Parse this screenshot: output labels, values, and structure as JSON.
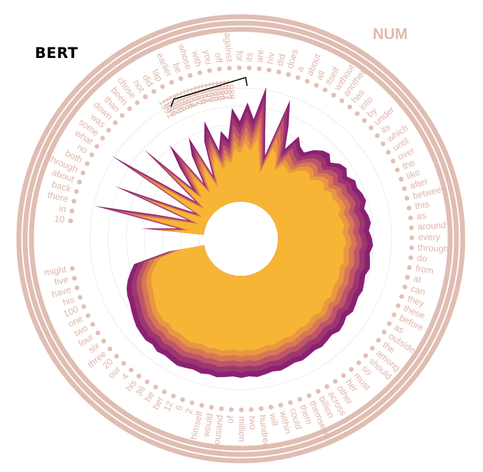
{
  "title": "BERT",
  "corner_label": "NUM",
  "chart_data": {
    "type": "radial-area",
    "theme": {
      "ring": "#e0bdb2",
      "dot": "#e2c0b5",
      "label": "#dfb6ab",
      "inner": "#f6b733",
      "outer": "#8a2173"
    },
    "bracket_label_group": [
      "1991",
      "1990",
      "1992",
      "2000",
      "1996",
      "1993",
      "1995",
      "1994",
      "1983",
      "1997",
      "1989",
      "1986",
      "1981",
      "1999",
      "1980",
      "1998",
      "1985",
      "1984",
      "1987",
      "1988"
    ],
    "words": [
      "10",
      "in",
      "there",
      "back",
      "about",
      "through",
      "both",
      "no",
      "what",
      "some",
      "was",
      "down",
      "than",
      "been",
      "chose",
      "not",
      "did",
      "lap",
      "earlier",
      "be",
      "whose",
      "with",
      "you",
      "off",
      "against",
      "for",
      "its",
      "are",
      "hiv",
      "did",
      "does",
      "a",
      "about",
      "all",
      "itself",
      "without",
      "another",
      "has",
      "into",
      "by",
      "under",
      "its",
      "which",
      "until",
      "over",
      "the",
      "like",
      "after",
      "between",
      "this",
      "as",
      "around",
      "every",
      "through",
      "do",
      "from",
      "at",
      "can",
      "they",
      "these",
      "before",
      "as",
      "outside",
      "the",
      "among",
      "should",
      "so",
      "must",
      "her",
      "other",
      "across",
      "billion",
      "themselves",
      "them",
      "could",
      "within",
      "will",
      "hundred",
      "two",
      "million",
      "of",
      "thousand",
      "would",
      "himself",
      "2",
      "6",
      "12",
      "her",
      "he",
      "36",
      "his",
      "4",
      "our",
      "20",
      "three",
      "six",
      "four",
      "two",
      "one",
      "100",
      "his",
      "have",
      "five",
      "might"
    ],
    "series": [
      {
        "name": "max",
        "values": [
          0.55,
          0.28,
          0.92,
          0.45,
          0.22,
          0.82,
          0.35,
          0.2,
          0.95,
          0.42,
          0.24,
          0.78,
          0.33,
          0.5,
          0.68,
          0.3,
          0.52,
          0.65,
          0.32,
          0.58,
          0.72,
          0.48,
          0.62,
          0.55,
          0.78,
          0.68,
          0.82,
          0.7,
          0.95,
          0.62,
          0.45,
          0.9,
          0.72,
          0.55,
          0.68,
          0.62,
          0.6,
          0.66,
          0.7,
          0.72,
          0.68,
          0.73,
          0.75,
          0.72,
          0.76,
          0.75,
          0.77,
          0.78,
          0.75,
          0.77,
          0.78,
          0.76,
          0.78,
          0.79,
          0.77,
          0.78,
          0.79,
          0.77,
          0.78,
          0.79,
          0.78,
          0.79,
          0.8,
          0.78,
          0.8,
          0.81,
          0.79,
          0.8,
          0.81,
          0.8,
          0.81,
          0.82,
          0.81,
          0.82,
          0.83,
          0.82,
          0.83,
          0.84,
          0.83,
          0.84,
          0.83,
          0.84,
          0.85,
          0.84,
          0.85,
          0.84,
          0.85,
          0.86,
          0.85,
          0.84,
          0.85,
          0.83,
          0.84,
          0.83,
          0.82,
          0.8,
          0.78,
          0.76,
          0.75,
          0.73,
          0.7,
          0.66,
          0.62,
          0.35
        ]
      },
      {
        "name": "q90",
        "values": [
          0.52,
          0.26,
          0.86,
          0.41,
          0.2,
          0.76,
          0.32,
          0.18,
          0.88,
          0.38,
          0.22,
          0.72,
          0.3,
          0.46,
          0.62,
          0.28,
          0.48,
          0.6,
          0.3,
          0.54,
          0.66,
          0.45,
          0.57,
          0.51,
          0.72,
          0.63,
          0.76,
          0.65,
          0.88,
          0.58,
          0.42,
          0.84,
          0.67,
          0.51,
          0.63,
          0.58,
          0.56,
          0.62,
          0.66,
          0.67,
          0.64,
          0.69,
          0.71,
          0.68,
          0.72,
          0.71,
          0.73,
          0.74,
          0.71,
          0.73,
          0.74,
          0.72,
          0.74,
          0.75,
          0.73,
          0.74,
          0.75,
          0.73,
          0.74,
          0.75,
          0.74,
          0.75,
          0.76,
          0.74,
          0.76,
          0.77,
          0.75,
          0.76,
          0.77,
          0.76,
          0.77,
          0.78,
          0.77,
          0.78,
          0.79,
          0.78,
          0.79,
          0.8,
          0.79,
          0.8,
          0.79,
          0.8,
          0.81,
          0.8,
          0.81,
          0.8,
          0.81,
          0.82,
          0.81,
          0.8,
          0.81,
          0.79,
          0.8,
          0.79,
          0.78,
          0.76,
          0.74,
          0.72,
          0.71,
          0.69,
          0.66,
          0.62,
          0.58,
          0.33
        ]
      },
      {
        "name": "q75",
        "values": [
          0.48,
          0.24,
          0.78,
          0.37,
          0.18,
          0.69,
          0.29,
          0.16,
          0.8,
          0.34,
          0.2,
          0.65,
          0.27,
          0.42,
          0.56,
          0.26,
          0.44,
          0.55,
          0.28,
          0.5,
          0.6,
          0.42,
          0.52,
          0.47,
          0.66,
          0.58,
          0.7,
          0.6,
          0.8,
          0.54,
          0.39,
          0.76,
          0.62,
          0.47,
          0.58,
          0.54,
          0.52,
          0.58,
          0.62,
          0.63,
          0.6,
          0.65,
          0.67,
          0.64,
          0.68,
          0.67,
          0.69,
          0.7,
          0.67,
          0.69,
          0.7,
          0.68,
          0.7,
          0.71,
          0.69,
          0.7,
          0.71,
          0.69,
          0.7,
          0.71,
          0.7,
          0.71,
          0.72,
          0.7,
          0.72,
          0.73,
          0.71,
          0.72,
          0.73,
          0.72,
          0.73,
          0.74,
          0.73,
          0.74,
          0.75,
          0.74,
          0.75,
          0.76,
          0.75,
          0.76,
          0.75,
          0.76,
          0.77,
          0.76,
          0.77,
          0.76,
          0.77,
          0.78,
          0.77,
          0.76,
          0.77,
          0.75,
          0.76,
          0.75,
          0.74,
          0.72,
          0.7,
          0.68,
          0.67,
          0.65,
          0.62,
          0.58,
          0.54,
          0.31
        ]
      },
      {
        "name": "median",
        "values": [
          0.44,
          0.22,
          0.7,
          0.33,
          0.16,
          0.62,
          0.26,
          0.15,
          0.72,
          0.31,
          0.18,
          0.58,
          0.25,
          0.38,
          0.5,
          0.24,
          0.4,
          0.5,
          0.26,
          0.46,
          0.55,
          0.39,
          0.48,
          0.43,
          0.6,
          0.53,
          0.64,
          0.55,
          0.72,
          0.5,
          0.36,
          0.68,
          0.57,
          0.43,
          0.53,
          0.5,
          0.48,
          0.54,
          0.58,
          0.59,
          0.56,
          0.61,
          0.63,
          0.6,
          0.64,
          0.63,
          0.65,
          0.66,
          0.63,
          0.65,
          0.66,
          0.64,
          0.66,
          0.67,
          0.65,
          0.66,
          0.67,
          0.65,
          0.66,
          0.67,
          0.66,
          0.67,
          0.68,
          0.66,
          0.68,
          0.69,
          0.67,
          0.68,
          0.69,
          0.68,
          0.69,
          0.7,
          0.69,
          0.7,
          0.71,
          0.7,
          0.71,
          0.72,
          0.71,
          0.72,
          0.71,
          0.72,
          0.73,
          0.72,
          0.73,
          0.72,
          0.73,
          0.74,
          0.73,
          0.72,
          0.73,
          0.71,
          0.72,
          0.71,
          0.7,
          0.68,
          0.66,
          0.64,
          0.63,
          0.61,
          0.58,
          0.54,
          0.5,
          0.29
        ]
      },
      {
        "name": "q25",
        "values": [
          0.4,
          0.2,
          0.62,
          0.29,
          0.14,
          0.55,
          0.23,
          0.14,
          0.62,
          0.28,
          0.16,
          0.5,
          0.23,
          0.34,
          0.44,
          0.22,
          0.36,
          0.45,
          0.24,
          0.42,
          0.5,
          0.36,
          0.44,
          0.4,
          0.54,
          0.48,
          0.58,
          0.5,
          0.64,
          0.46,
          0.33,
          0.6,
          0.52,
          0.4,
          0.48,
          0.46,
          0.44,
          0.5,
          0.54,
          0.55,
          0.52,
          0.57,
          0.59,
          0.56,
          0.6,
          0.59,
          0.61,
          0.62,
          0.59,
          0.61,
          0.62,
          0.6,
          0.62,
          0.63,
          0.61,
          0.62,
          0.63,
          0.61,
          0.62,
          0.63,
          0.62,
          0.63,
          0.64,
          0.62,
          0.64,
          0.65,
          0.63,
          0.64,
          0.65,
          0.64,
          0.65,
          0.66,
          0.65,
          0.66,
          0.67,
          0.66,
          0.67,
          0.68,
          0.67,
          0.68,
          0.67,
          0.68,
          0.69,
          0.68,
          0.69,
          0.68,
          0.69,
          0.7,
          0.69,
          0.68,
          0.69,
          0.67,
          0.68,
          0.67,
          0.66,
          0.64,
          0.62,
          0.6,
          0.59,
          0.57,
          0.54,
          0.5,
          0.46,
          0.27
        ]
      },
      {
        "name": "min",
        "values": [
          0.36,
          0.19,
          0.54,
          0.26,
          0.13,
          0.48,
          0.21,
          0.13,
          0.52,
          0.26,
          0.15,
          0.42,
          0.22,
          0.3,
          0.38,
          0.21,
          0.32,
          0.4,
          0.22,
          0.38,
          0.45,
          0.33,
          0.4,
          0.37,
          0.48,
          0.44,
          0.52,
          0.46,
          0.56,
          0.42,
          0.31,
          0.52,
          0.48,
          0.37,
          0.44,
          0.43,
          0.41,
          0.46,
          0.5,
          0.51,
          0.48,
          0.53,
          0.55,
          0.52,
          0.56,
          0.55,
          0.57,
          0.58,
          0.55,
          0.57,
          0.58,
          0.56,
          0.58,
          0.59,
          0.57,
          0.58,
          0.59,
          0.57,
          0.58,
          0.59,
          0.58,
          0.59,
          0.6,
          0.58,
          0.6,
          0.61,
          0.59,
          0.6,
          0.61,
          0.6,
          0.61,
          0.62,
          0.61,
          0.62,
          0.63,
          0.62,
          0.63,
          0.64,
          0.63,
          0.64,
          0.63,
          0.64,
          0.65,
          0.64,
          0.65,
          0.64,
          0.65,
          0.66,
          0.65,
          0.64,
          0.65,
          0.63,
          0.64,
          0.63,
          0.62,
          0.6,
          0.58,
          0.56,
          0.55,
          0.53,
          0.5,
          0.46,
          0.42,
          0.25
        ]
      }
    ]
  }
}
